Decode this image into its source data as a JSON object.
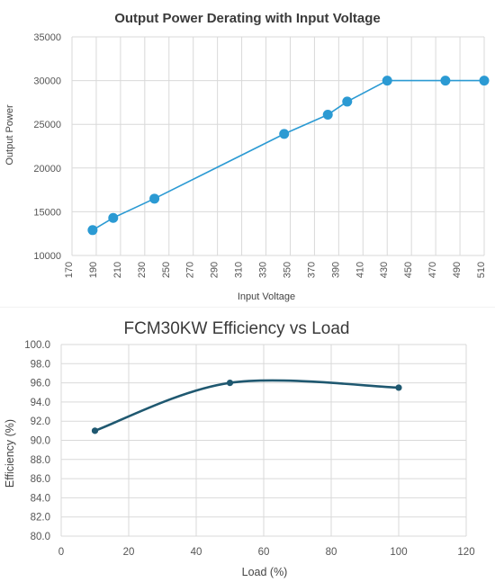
{
  "chart_data": [
    {
      "type": "line",
      "title": "Output Power Derating with Input Voltage",
      "xlabel": "Input Voltage",
      "ylabel": "Output Power",
      "xlim": [
        170,
        510
      ],
      "ylim": [
        10000,
        35000
      ],
      "x_ticks": [
        "170",
        "190",
        "210",
        "230",
        "250",
        "270",
        "290",
        "310",
        "330",
        "350",
        "370",
        "390",
        "410",
        "430",
        "450",
        "470",
        "490",
        "510"
      ],
      "y_ticks": [
        "10000",
        "15000",
        "20000",
        "25000",
        "30000",
        "35000"
      ],
      "grid": true,
      "legend": "none",
      "color": "#2b9ad3",
      "series": [
        {
          "x": [
            187,
            204,
            238,
            345,
            381,
            397,
            430,
            478,
            510
          ],
          "values": [
            12900,
            14300,
            16500,
            23900,
            26100,
            27600,
            30000,
            30000,
            30000
          ]
        }
      ]
    },
    {
      "type": "line",
      "title": "FCM30KW Efficiency vs Load",
      "xlabel": "Load (%)",
      "ylabel": "Efficiency (%)",
      "xlim": [
        0,
        120
      ],
      "ylim": [
        80.0,
        100.0
      ],
      "x_ticks": [
        "0",
        "20",
        "40",
        "60",
        "80",
        "100",
        "120"
      ],
      "y_ticks": [
        "80.0",
        "82.0",
        "84.0",
        "86.0",
        "88.0",
        "90.0",
        "92.0",
        "94.0",
        "96.0",
        "98.0",
        "100.0"
      ],
      "grid": true,
      "legend": "none",
      "smooth": true,
      "color": "#1f5870",
      "series": [
        {
          "x": [
            10,
            50,
            100
          ],
          "values": [
            91.0,
            96.0,
            95.5
          ]
        }
      ]
    }
  ]
}
